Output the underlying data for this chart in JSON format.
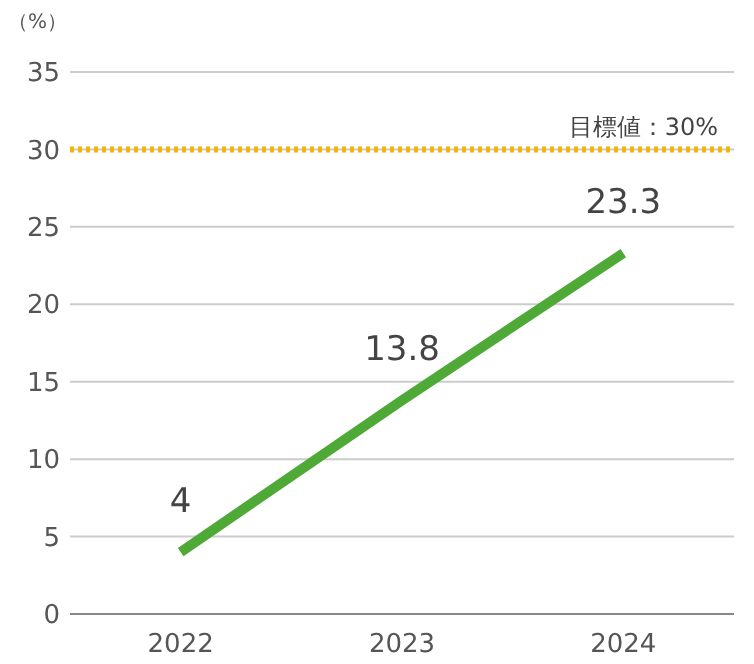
{
  "chart_data": {
    "type": "line",
    "ylabel": "（%）",
    "categories": [
      "2022",
      "2023",
      "2024"
    ],
    "series": [
      {
        "color": "#4fa936",
        "values": [
          4,
          13.8,
          23.3
        ]
      }
    ],
    "ylim": [
      0,
      35
    ],
    "yticks": [
      0,
      5,
      10,
      15,
      20,
      25,
      30,
      35
    ],
    "grid": "y",
    "data_labels": true,
    "marker": "none",
    "line_style": "solid",
    "ref_lines": [
      {
        "axis": "y",
        "value": 30,
        "label": "目標値：30%",
        "color": "#f5b400",
        "line_style": "dotted"
      }
    ]
  }
}
